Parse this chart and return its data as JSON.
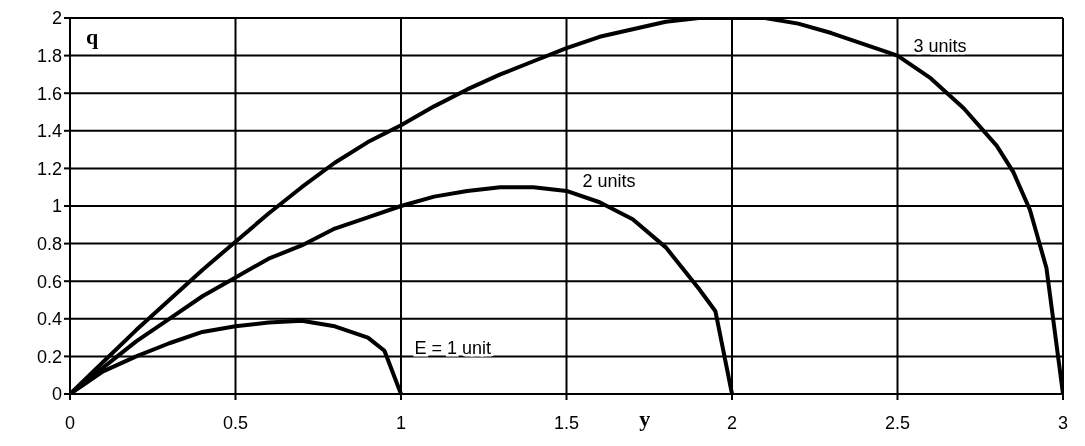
{
  "chart_data": {
    "type": "line",
    "xlabel": "y",
    "ylabel": "q",
    "xlim": [
      0,
      3
    ],
    "xticks": [
      0,
      0.5,
      1,
      1.5,
      2,
      2.5,
      3
    ],
    "ylim": [
      0,
      2
    ],
    "yticks": [
      0,
      0.2,
      0.4,
      0.6,
      0.8,
      1,
      1.2,
      1.4,
      1.6,
      1.8,
      2
    ],
    "grid": true,
    "marker": "none",
    "line_style": "solid",
    "series": [
      {
        "color": "#000000",
        "x": [
          0,
          0.1,
          0.2,
          0.3,
          0.4,
          0.5,
          0.6,
          0.7,
          0.8,
          0.9,
          0.95,
          1
        ],
        "values": [
          0,
          0.12,
          0.2,
          0.27,
          0.33,
          0.36,
          0.38,
          0.39,
          0.36,
          0.3,
          0.23,
          0
        ]
      },
      {
        "color": "#000000",
        "x": [
          0,
          0.1,
          0.2,
          0.3,
          0.4,
          0.5,
          0.6,
          0.7,
          0.8,
          0.9,
          1,
          1.1,
          1.2,
          1.3,
          1.4,
          1.5,
          1.6,
          1.7,
          1.8,
          1.9,
          1.95,
          2
        ],
        "values": [
          0,
          0.14,
          0.28,
          0.4,
          0.52,
          0.62,
          0.72,
          0.79,
          0.88,
          0.94,
          1,
          1.05,
          1.08,
          1.1,
          1.1,
          1.08,
          1.02,
          0.93,
          0.78,
          0.56,
          0.44,
          0
        ]
      },
      {
        "color": "#000000",
        "x": [
          0,
          0.1,
          0.2,
          0.3,
          0.4,
          0.5,
          0.6,
          0.7,
          0.8,
          0.9,
          1,
          1.1,
          1.2,
          1.3,
          1.4,
          1.5,
          1.6,
          1.7,
          1.8,
          1.9,
          2,
          2.1,
          2.2,
          2.3,
          2.4,
          2.5,
          2.6,
          2.7,
          2.8,
          2.85,
          2.9,
          2.95,
          3
        ],
        "values": [
          0,
          0.17,
          0.34,
          0.5,
          0.66,
          0.81,
          0.96,
          1.1,
          1.23,
          1.34,
          1.43,
          1.53,
          1.62,
          1.7,
          1.77,
          1.84,
          1.9,
          1.94,
          1.98,
          2,
          2,
          2,
          1.97,
          1.92,
          1.86,
          1.8,
          1.68,
          1.52,
          1.32,
          1.18,
          0.98,
          0.67,
          0
        ]
      }
    ],
    "annotations": [
      {
        "text": "E = 1 unit",
        "x": 0.95,
        "y": 0.23
      },
      {
        "text": "2 units",
        "x": 1.5,
        "y": 1.08
      },
      {
        "text": "3 units",
        "x": 2.5,
        "y": 1.8
      }
    ]
  }
}
